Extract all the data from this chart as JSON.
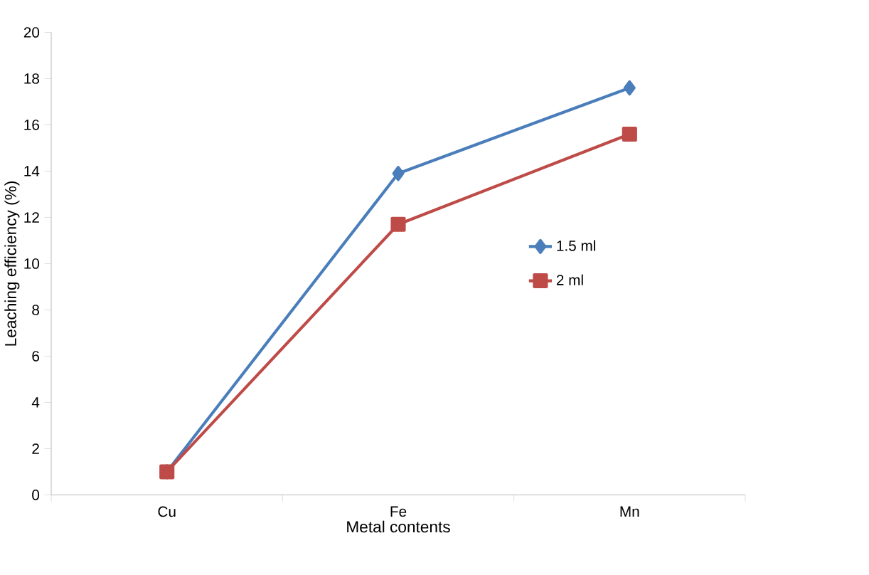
{
  "chart_data": {
    "type": "line",
    "xlabel": "Metal contents",
    "ylabel": "Leaching efficiency (%)",
    "categories": [
      "Cu",
      "Fe",
      "Mn"
    ],
    "series": [
      {
        "name": "1.5 ml",
        "color": "#4a7ebb",
        "marker": "diamond",
        "values": [
          1.0,
          13.9,
          17.6
        ]
      },
      {
        "name": "2 ml",
        "color": "#be4b48",
        "marker": "square",
        "values": [
          1.0,
          11.7,
          15.6
        ]
      }
    ],
    "ylim": [
      0,
      20
    ],
    "yticks": [
      0,
      2,
      4,
      6,
      8,
      10,
      12,
      14,
      16,
      18,
      20
    ],
    "grid": false,
    "legend": "right",
    "line_style": "solid"
  }
}
